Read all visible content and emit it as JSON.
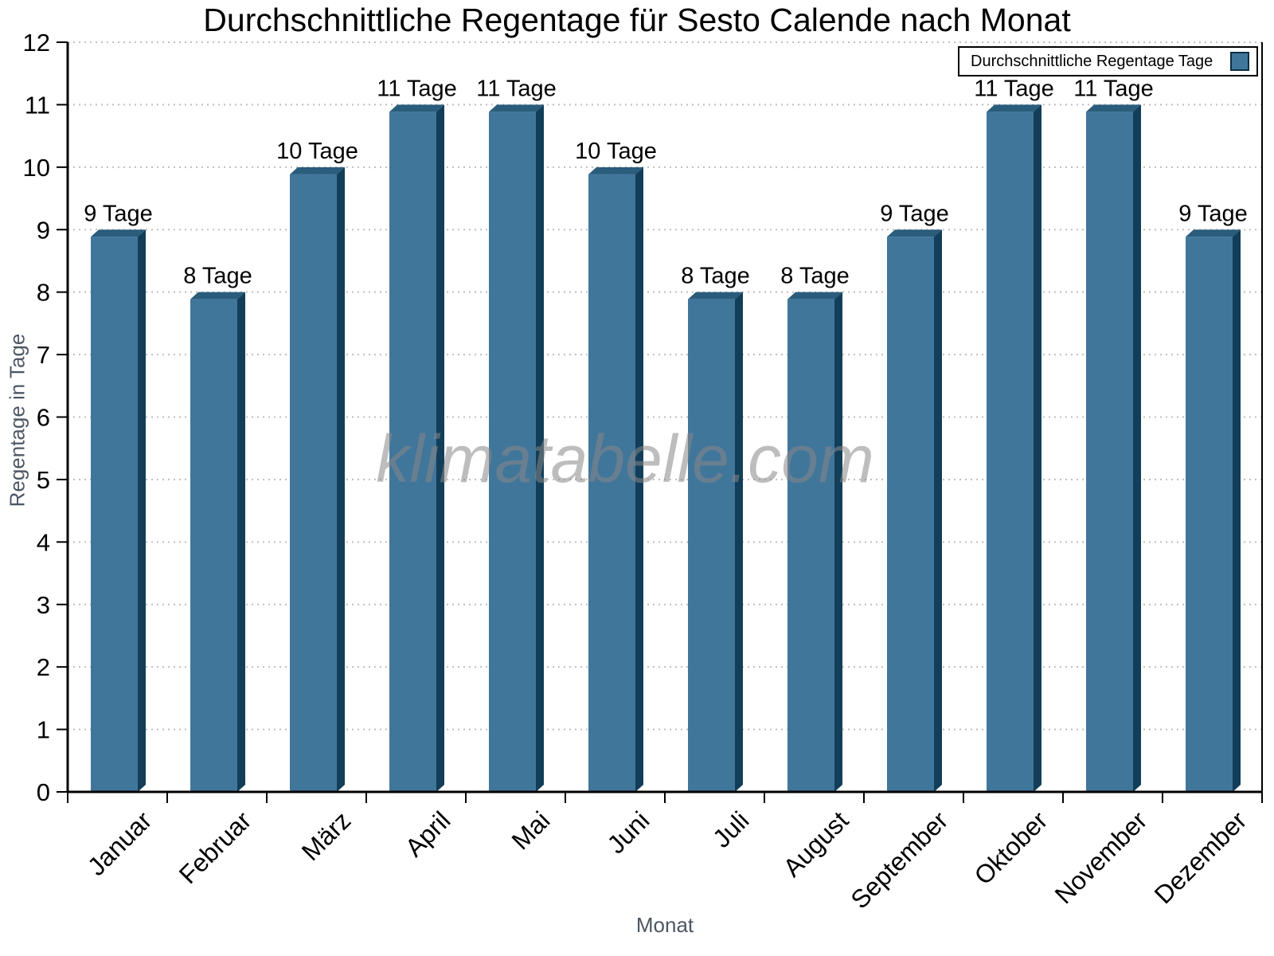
{
  "title": "Durchschnittliche Regentage für Sesto Calende nach Monat",
  "watermark": "klimatabelle.com",
  "legend": {
    "label": "Durchschnittliche Regentage Tage",
    "swatch": "blue-square-icon"
  },
  "axes": {
    "x_label": "Monat",
    "y_label": "Regentage in Tage",
    "y_ticks": [
      0,
      1,
      2,
      3,
      4,
      5,
      6,
      7,
      8,
      9,
      10,
      11,
      12
    ]
  },
  "chart_data": {
    "type": "bar",
    "title": "Durchschnittliche Regentage für Sesto Calende nach Monat",
    "categories": [
      "Januar",
      "Februar",
      "März",
      "April",
      "Mai",
      "Juni",
      "Juli",
      "August",
      "September",
      "Oktober",
      "November",
      "Dezember"
    ],
    "values": [
      9,
      8,
      10,
      11,
      11,
      10,
      8,
      8,
      9,
      11,
      11,
      9
    ],
    "value_labels": [
      "9 Tage",
      "8 Tage",
      "10 Tage",
      "11 Tage",
      "11 Tage",
      "10 Tage",
      "8 Tage",
      "8 Tage",
      "9 Tage",
      "11 Tage",
      "11 Tage",
      "9 Tage"
    ],
    "xlabel": "Monat",
    "ylabel": "Regentage in Tage",
    "ylim": [
      0,
      12
    ],
    "ytick_step": 1,
    "legend": [
      "Durchschnittliche Regentage Tage"
    ],
    "legend_position": "top-right",
    "grid": "horizontal-dotted",
    "bar_style": "3d-extruded",
    "watermark": "klimatabelle.com"
  },
  "colors": {
    "bar_face": "#41769B",
    "bar_side": "#123E59",
    "bar_top": "#2A5C7C",
    "grid": "#bfbfbf",
    "axis": "#000000",
    "tick_text": "#000000",
    "axis_title_text": "#4d5763",
    "watermark_text": "#878787"
  }
}
